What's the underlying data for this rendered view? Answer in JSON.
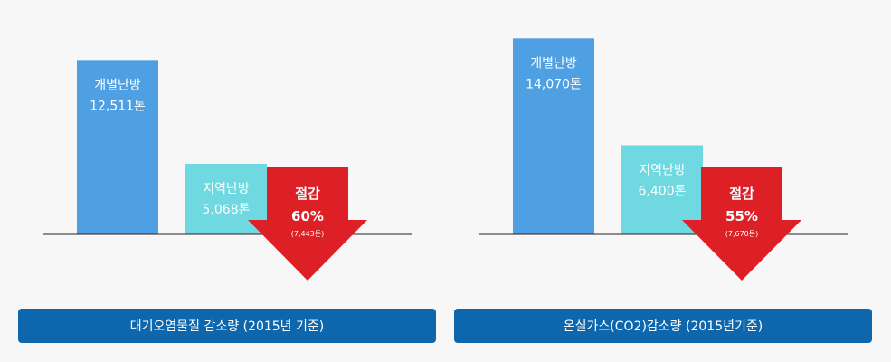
{
  "chart_data": [
    {
      "type": "bar",
      "categories": [
        "개별난방",
        "지역난방"
      ],
      "values": [
        12511,
        5068
      ],
      "value_labels": [
        "12,511톤",
        "5,068톤"
      ],
      "title": "대기오염물질 감소량 (2015년 기준)",
      "reduction": {
        "label": "절감",
        "percent": "60%",
        "amount": "(7,443톤)"
      },
      "colors": [
        "#4fa0e2",
        "#6fd8e0"
      ],
      "arrow_color": "#dd1f26"
    },
    {
      "type": "bar",
      "categories": [
        "개별난방",
        "지역난방"
      ],
      "values": [
        14070,
        6400
      ],
      "value_labels": [
        "14,070톤",
        "6,400톤"
      ],
      "title": "온실가스(CO2)감소량 (2015년기준)",
      "reduction": {
        "label": "절감",
        "percent": "55%",
        "amount": "(7,670톤)"
      },
      "colors": [
        "#4fa0e2",
        "#6fd8e0"
      ],
      "arrow_color": "#dd1f26"
    }
  ]
}
